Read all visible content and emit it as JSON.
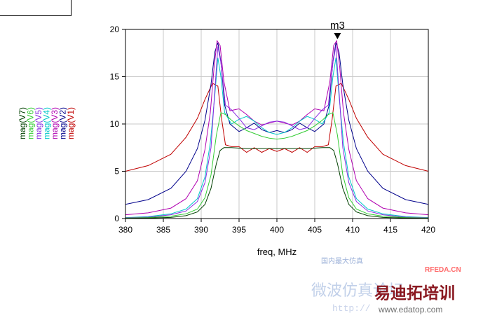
{
  "chart_data": {
    "type": "line",
    "xlabel": "freq, MHz",
    "xlim": [
      380,
      420
    ],
    "ylim": [
      0,
      20
    ],
    "xticks": [
      380,
      385,
      390,
      395,
      400,
      405,
      410,
      415,
      420
    ],
    "yticks": [
      0,
      5,
      10,
      15,
      20
    ],
    "grid": true,
    "legend_placement": "left, rotated vertical",
    "marker": {
      "label": "m3",
      "x": 408.0,
      "y": 18.7
    },
    "series": [
      {
        "name": "mag(V1)",
        "color": "#c00000",
        "x": [
          380,
          383,
          386,
          388,
          389.5,
          390.5,
          391.5,
          392.2,
          392.7,
          393.2,
          394,
          395,
          396,
          397,
          398,
          399,
          400,
          401,
          402,
          403,
          404,
          405,
          406,
          406.8,
          407.3,
          407.8,
          408.5,
          409.5,
          410.5,
          412,
          414,
          417,
          420
        ],
        "y": [
          5.0,
          5.6,
          6.8,
          8.6,
          10.6,
          12.6,
          14.3,
          14.0,
          10.5,
          7.8,
          7.6,
          7.6,
          7.0,
          7.5,
          7.0,
          7.4,
          7.1,
          7.4,
          7.0,
          7.5,
          7.0,
          7.6,
          7.6,
          7.8,
          10.5,
          14.0,
          14.3,
          12.6,
          10.6,
          8.6,
          6.8,
          5.6,
          5.0
        ]
      },
      {
        "name": "mag(V2)",
        "color": "#00008b",
        "x": [
          380,
          383,
          386,
          388,
          389.5,
          390.5,
          391.3,
          391.8,
          392.2,
          392.6,
          393.1,
          393.8,
          395,
          396,
          397,
          398,
          399,
          400,
          401,
          402,
          403,
          404,
          405,
          406.2,
          406.9,
          407.4,
          407.8,
          408.2,
          408.7,
          409.5,
          410.5,
          412,
          414,
          417,
          420
        ],
        "y": [
          1.5,
          2.0,
          3.2,
          5.0,
          7.4,
          10.4,
          14.2,
          17.6,
          18.6,
          16.6,
          12.0,
          10.0,
          9.2,
          9.6,
          10.1,
          9.4,
          9.1,
          9.3,
          9.1,
          9.4,
          10.1,
          9.6,
          9.2,
          10.0,
          12.0,
          16.6,
          18.6,
          17.6,
          14.2,
          10.4,
          7.4,
          5.0,
          3.2,
          2.0,
          1.5
        ]
      },
      {
        "name": "mag(V3)",
        "color": "#b000b0",
        "x": [
          380,
          383,
          386,
          388,
          389.5,
          390.5,
          391.2,
          391.7,
          392.1,
          392.5,
          393,
          393.8,
          395,
          396,
          397,
          398,
          399,
          400,
          401,
          402,
          403,
          404,
          405,
          406.2,
          407,
          407.5,
          407.9,
          408.3,
          408.8,
          409.5,
          410.5,
          412,
          414,
          417,
          420
        ],
        "y": [
          0.4,
          0.6,
          1.1,
          2.1,
          4.0,
          7.3,
          11.2,
          16.0,
          18.8,
          18.3,
          14.5,
          11.4,
          11.6,
          11.0,
          10.3,
          9.9,
          10.1,
          10.3,
          10.1,
          9.9,
          10.3,
          11.0,
          11.6,
          11.4,
          14.5,
          18.3,
          18.8,
          16.0,
          11.2,
          7.3,
          4.0,
          2.1,
          1.1,
          0.6,
          0.4
        ]
      },
      {
        "name": "mag(V4)",
        "color": "#00c8c8",
        "x": [
          380,
          383,
          386,
          388,
          389.5,
          390.5,
          391.2,
          391.8,
          392.2,
          392.6,
          393.1,
          394,
          395,
          396,
          397,
          398,
          399,
          400,
          401,
          402,
          403,
          404,
          405,
          406,
          406.9,
          407.4,
          407.8,
          408.2,
          408.8,
          409.5,
          410.5,
          412,
          414,
          417,
          420
        ],
        "y": [
          0.1,
          0.2,
          0.5,
          1.0,
          2.1,
          4.4,
          8.0,
          13.0,
          17.0,
          15.0,
          11.2,
          10.0,
          10.5,
          10.8,
          10.3,
          9.6,
          9.1,
          8.9,
          9.1,
          9.6,
          10.3,
          10.8,
          10.5,
          10.0,
          11.2,
          15.0,
          17.0,
          13.0,
          8.0,
          4.4,
          2.1,
          1.0,
          0.5,
          0.2,
          0.1
        ]
      },
      {
        "name": "mag(V5)",
        "color": "#8a2be2",
        "x": [
          380,
          383,
          386,
          388,
          389.5,
          390.5,
          391.3,
          391.8,
          392.2,
          392.6,
          393.2,
          394,
          395,
          396,
          397,
          398,
          399,
          400,
          401,
          402,
          403,
          404,
          405,
          406,
          406.8,
          407.4,
          407.8,
          408.2,
          408.7,
          409.5,
          410.5,
          412,
          414,
          417,
          420
        ],
        "y": [
          0.08,
          0.15,
          0.4,
          0.8,
          1.8,
          3.8,
          7.5,
          13.5,
          18.2,
          16.5,
          12.0,
          11.5,
          10.6,
          9.6,
          9.4,
          9.8,
          10.2,
          10.3,
          10.2,
          9.8,
          9.4,
          9.6,
          10.6,
          11.5,
          12.0,
          16.5,
          18.2,
          13.5,
          7.5,
          3.8,
          1.8,
          0.8,
          0.4,
          0.15,
          0.08
        ]
      },
      {
        "name": "mag(V6)",
        "color": "#33cc33",
        "x": [
          380,
          383,
          386,
          388,
          389.5,
          390.5,
          391.3,
          392,
          392.6,
          393.2,
          394,
          395,
          396,
          397,
          398,
          399,
          400,
          401,
          402,
          403,
          404,
          405,
          406,
          406.8,
          407.4,
          408,
          408.7,
          409.5,
          410.5,
          412,
          414,
          417,
          420
        ],
        "y": [
          0.05,
          0.1,
          0.25,
          0.5,
          1.0,
          2.2,
          4.6,
          8.8,
          11.2,
          11.0,
          10.4,
          9.8,
          9.3,
          9.0,
          8.7,
          8.5,
          8.4,
          8.5,
          8.7,
          9.0,
          9.3,
          9.8,
          10.4,
          11.0,
          11.2,
          8.8,
          4.6,
          2.2,
          1.0,
          0.5,
          0.25,
          0.1,
          0.05
        ]
      },
      {
        "name": "mag(V7)",
        "color": "#004000",
        "x": [
          380,
          383,
          386,
          388,
          389.5,
          390.5,
          391.3,
          392,
          392.5,
          393,
          394,
          396,
          398,
          400,
          402,
          404,
          406,
          407,
          407.5,
          408,
          408.7,
          409.5,
          410.5,
          412,
          414,
          417,
          420
        ],
        "y": [
          0.02,
          0.05,
          0.12,
          0.3,
          0.7,
          1.5,
          3.2,
          5.8,
          7.2,
          7.5,
          7.5,
          7.4,
          7.4,
          7.4,
          7.4,
          7.4,
          7.5,
          7.5,
          7.2,
          5.8,
          3.2,
          1.5,
          0.7,
          0.3,
          0.12,
          0.05,
          0.02
        ]
      }
    ]
  },
  "watermark": {
    "brand_cn": "易迪拓培训",
    "site": "RFEDA.CN",
    "url": "www.edatop.com",
    "url_faded": "http://",
    "faded_cn": "微波仿真论坛",
    "faded_cn_small": "国内最大仿真"
  }
}
